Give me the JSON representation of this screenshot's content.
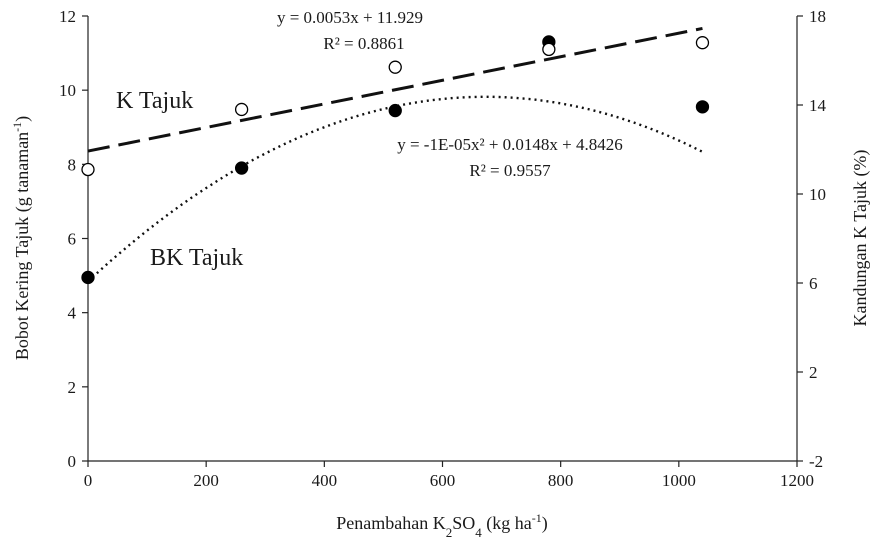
{
  "chart_data": {
    "type": "scatter",
    "xlabel_parts": [
      "Penambahan K",
      "2",
      "SO",
      "4",
      " (kg ha",
      "-1",
      ")"
    ],
    "ylabel_parts": [
      "Bobot Kering Tajuk (g tanaman",
      "-1",
      ")"
    ],
    "y2label": "Kandungan K Tajuk (%)",
    "xlim": [
      0,
      1200
    ],
    "ylim": [
      0,
      12
    ],
    "y2lim": [
      -2,
      18
    ],
    "x_ticks": [
      "0",
      "200",
      "400",
      "600",
      "800",
      "1000",
      "1200"
    ],
    "y_ticks": [
      "0",
      "2",
      "4",
      "6",
      "8",
      "10",
      "12"
    ],
    "y2_ticks": [
      "-2",
      "2",
      "6",
      "10",
      "14",
      "18"
    ],
    "grid": false,
    "series": [
      {
        "name": "BK Tajuk",
        "axis": "left",
        "marker": "filled-circle",
        "x": [
          0,
          260,
          520,
          780,
          1040
        ],
        "y": [
          4.95,
          7.9,
          9.45,
          11.3,
          9.55
        ],
        "trendline": {
          "style": "dotted",
          "equation": "y = -1E-05x² + 0.0148x + 4.8426",
          "r2": "R² = 0.9557"
        }
      },
      {
        "name": "K Tajuk",
        "axis": "right",
        "marker": "open-circle",
        "x": [
          0,
          260,
          520,
          780,
          1040
        ],
        "y": [
          11.1,
          13.8,
          15.7,
          16.5,
          16.8
        ],
        "trendline": {
          "style": "dashed",
          "equation": "y = 0.0053x + 11.929",
          "r2": "R² = 0.8861"
        }
      }
    ]
  }
}
